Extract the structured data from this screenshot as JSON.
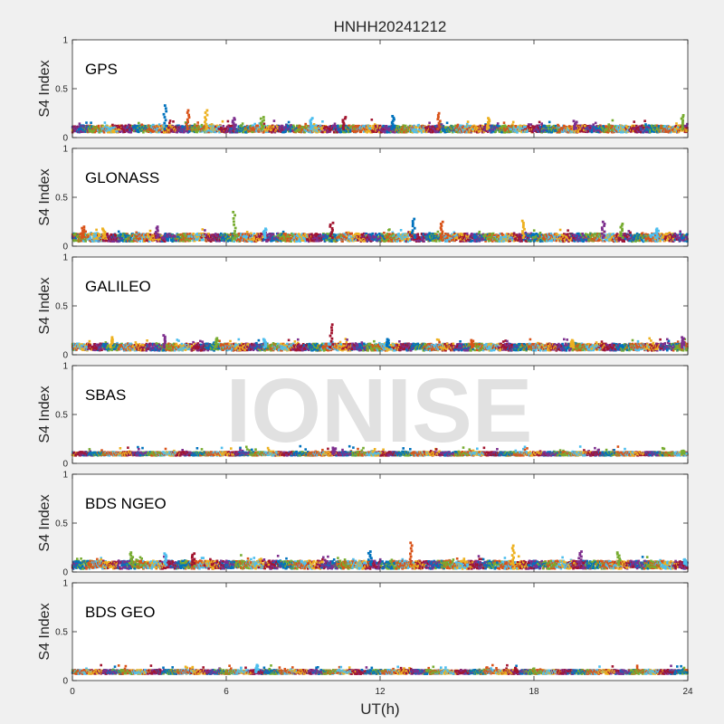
{
  "title": "HNHH20241212",
  "watermark": "IONISE",
  "chart_data": {
    "type": "scatter",
    "title": "HNHH20241212",
    "xlabel": "UT(h)",
    "ylabel": "S4 Index",
    "xlim": [
      0,
      24
    ],
    "ylim": [
      0,
      1
    ],
    "xticks": [
      0,
      6,
      12,
      18,
      24
    ],
    "yticks": [
      0,
      0.5,
      1
    ],
    "ytick_labels": [
      "0",
      "0.5",
      "1"
    ],
    "grid": false,
    "colors": [
      "#0072BD",
      "#D95319",
      "#EDB120",
      "#7E2F8E",
      "#77AC30",
      "#4DBEEE",
      "#A2142F"
    ],
    "panels": [
      {
        "label": "GPS",
        "baseline": 0.09,
        "spread": 0.035,
        "spikes": [
          [
            3.6,
            0.33
          ],
          [
            4.5,
            0.28
          ],
          [
            5.2,
            0.28
          ],
          [
            6.3,
            0.2
          ],
          [
            7.4,
            0.21
          ],
          [
            9.3,
            0.2
          ],
          [
            10.6,
            0.21
          ],
          [
            12.5,
            0.22
          ],
          [
            14.3,
            0.25
          ],
          [
            16.2,
            0.2
          ],
          [
            19.6,
            0.17
          ],
          [
            23.8,
            0.23
          ]
        ]
      },
      {
        "label": "GLONASS",
        "baseline": 0.09,
        "spread": 0.04,
        "spikes": [
          [
            0.4,
            0.2
          ],
          [
            1.2,
            0.18
          ],
          [
            3.3,
            0.2
          ],
          [
            6.3,
            0.35
          ],
          [
            7.5,
            0.18
          ],
          [
            10.1,
            0.24
          ],
          [
            13.3,
            0.28
          ],
          [
            14.4,
            0.25
          ],
          [
            17.6,
            0.26
          ],
          [
            20.7,
            0.25
          ],
          [
            21.4,
            0.23
          ],
          [
            22.8,
            0.18
          ]
        ]
      },
      {
        "label": "GALILEO",
        "baseline": 0.08,
        "spread": 0.035,
        "spikes": [
          [
            1.5,
            0.18
          ],
          [
            3.6,
            0.2
          ],
          [
            5.6,
            0.17
          ],
          [
            7.5,
            0.16
          ],
          [
            10.1,
            0.31
          ],
          [
            12.3,
            0.16
          ],
          [
            15.6,
            0.15
          ],
          [
            19.5,
            0.15
          ],
          [
            23.8,
            0.18
          ]
        ]
      },
      {
        "label": "SBAS",
        "baseline": 0.1,
        "spread": 0.018,
        "spikes": [
          [
            10.2,
            0.16
          ],
          [
            23.8,
            0.13
          ]
        ]
      },
      {
        "label": "BDS NGEO",
        "baseline": 0.075,
        "spread": 0.04,
        "spikes": [
          [
            2.3,
            0.2
          ],
          [
            3.6,
            0.19
          ],
          [
            4.7,
            0.19
          ],
          [
            11.6,
            0.21
          ],
          [
            13.2,
            0.3
          ],
          [
            17.2,
            0.27
          ],
          [
            19.8,
            0.21
          ],
          [
            21.3,
            0.2
          ],
          [
            23.9,
            0.13
          ]
        ]
      },
      {
        "label": "BDS GEO",
        "baseline": 0.09,
        "spread": 0.02,
        "spikes": [
          [
            7.2,
            0.16
          ],
          [
            17.3,
            0.13
          ]
        ]
      }
    ]
  }
}
